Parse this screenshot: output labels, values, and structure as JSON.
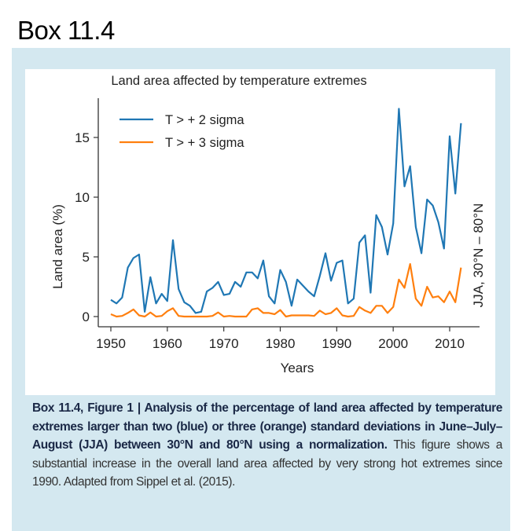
{
  "box_title": "Box 11.4",
  "caption": {
    "bold": "Box 11.4, Figure 1 | Analysis of the percentage of land area affected by temperature extremes larger than two (blue) or three (orange) standard deviations in June–July–August (JJA) between 30°N and 80°N using a normalization.",
    "rest": " This figure shows a substantial increase in the overall land area affected by very strong hot extremes since 1990. Adapted from Sippel et al. (2015)."
  },
  "chart_data": {
    "type": "line",
    "title": "Land area affected by temperature extremes",
    "xlabel": "Years",
    "ylabel": "Land area (%)",
    "right_label": "JJA, 30°N – 80°N",
    "xlim": [
      1947,
      2013
    ],
    "ylim": [
      -0.8,
      18
    ],
    "xticks": [
      1950,
      1960,
      1970,
      1980,
      1990,
      2000,
      2010
    ],
    "yticks": [
      0,
      5,
      10,
      15
    ],
    "legend_position": "top-left",
    "grid": false,
    "x": [
      1950,
      1951,
      1952,
      1953,
      1954,
      1955,
      1956,
      1957,
      1958,
      1959,
      1960,
      1961,
      1962,
      1963,
      1964,
      1965,
      1966,
      1967,
      1968,
      1969,
      1970,
      1971,
      1972,
      1973,
      1974,
      1975,
      1976,
      1977,
      1978,
      1979,
      1980,
      1981,
      1982,
      1983,
      1984,
      1985,
      1986,
      1987,
      1988,
      1989,
      1990,
      1991,
      1992,
      1993,
      1994,
      1995,
      1996,
      1997,
      1998,
      1999,
      2000,
      2001,
      2002,
      2003,
      2004,
      2005,
      2006,
      2007,
      2008,
      2009,
      2010,
      2011,
      2012
    ],
    "series": [
      {
        "name": "T > + 2 sigma",
        "color": "#1f77b4",
        "values": [
          1.4,
          1.1,
          1.6,
          4.1,
          4.9,
          5.2,
          0.4,
          3.3,
          1.1,
          1.9,
          1.3,
          6.4,
          2.3,
          1.2,
          0.9,
          0.3,
          0.4,
          2.1,
          2.4,
          2.9,
          1.8,
          1.9,
          2.9,
          2.5,
          3.7,
          3.7,
          3.2,
          4.7,
          1.7,
          1.1,
          3.9,
          2.9,
          0.9,
          3.1,
          2.6,
          2.1,
          1.7,
          3.4,
          5.3,
          3.0,
          4.5,
          4.7,
          1.1,
          1.5,
          6.2,
          6.8,
          2.0,
          8.5,
          7.5,
          5.2,
          7.8,
          17.4,
          10.9,
          12.6,
          7.5,
          5.3,
          9.8,
          9.3,
          7.9,
          5.7,
          15.1,
          10.3,
          16.2
        ]
      },
      {
        "name": "T > + 3 sigma",
        "color": "#ff7f0e",
        "values": [
          0.2,
          0.0,
          0.05,
          0.3,
          0.6,
          0.1,
          0.0,
          0.35,
          0.0,
          0.05,
          0.45,
          0.7,
          0.05,
          0.0,
          0.0,
          0.0,
          0.0,
          0.0,
          0.05,
          0.35,
          0.0,
          0.05,
          0.0,
          0.0,
          0.0,
          0.6,
          0.7,
          0.3,
          0.3,
          0.2,
          0.55,
          0.0,
          0.1,
          0.1,
          0.1,
          0.1,
          0.05,
          0.5,
          0.2,
          0.3,
          0.7,
          0.1,
          0.0,
          0.05,
          0.8,
          0.5,
          0.3,
          0.9,
          0.9,
          0.3,
          0.8,
          3.1,
          2.4,
          4.4,
          1.5,
          0.9,
          2.5,
          1.6,
          1.7,
          1.2,
          2.1,
          1.2,
          4.1
        ]
      }
    ]
  }
}
